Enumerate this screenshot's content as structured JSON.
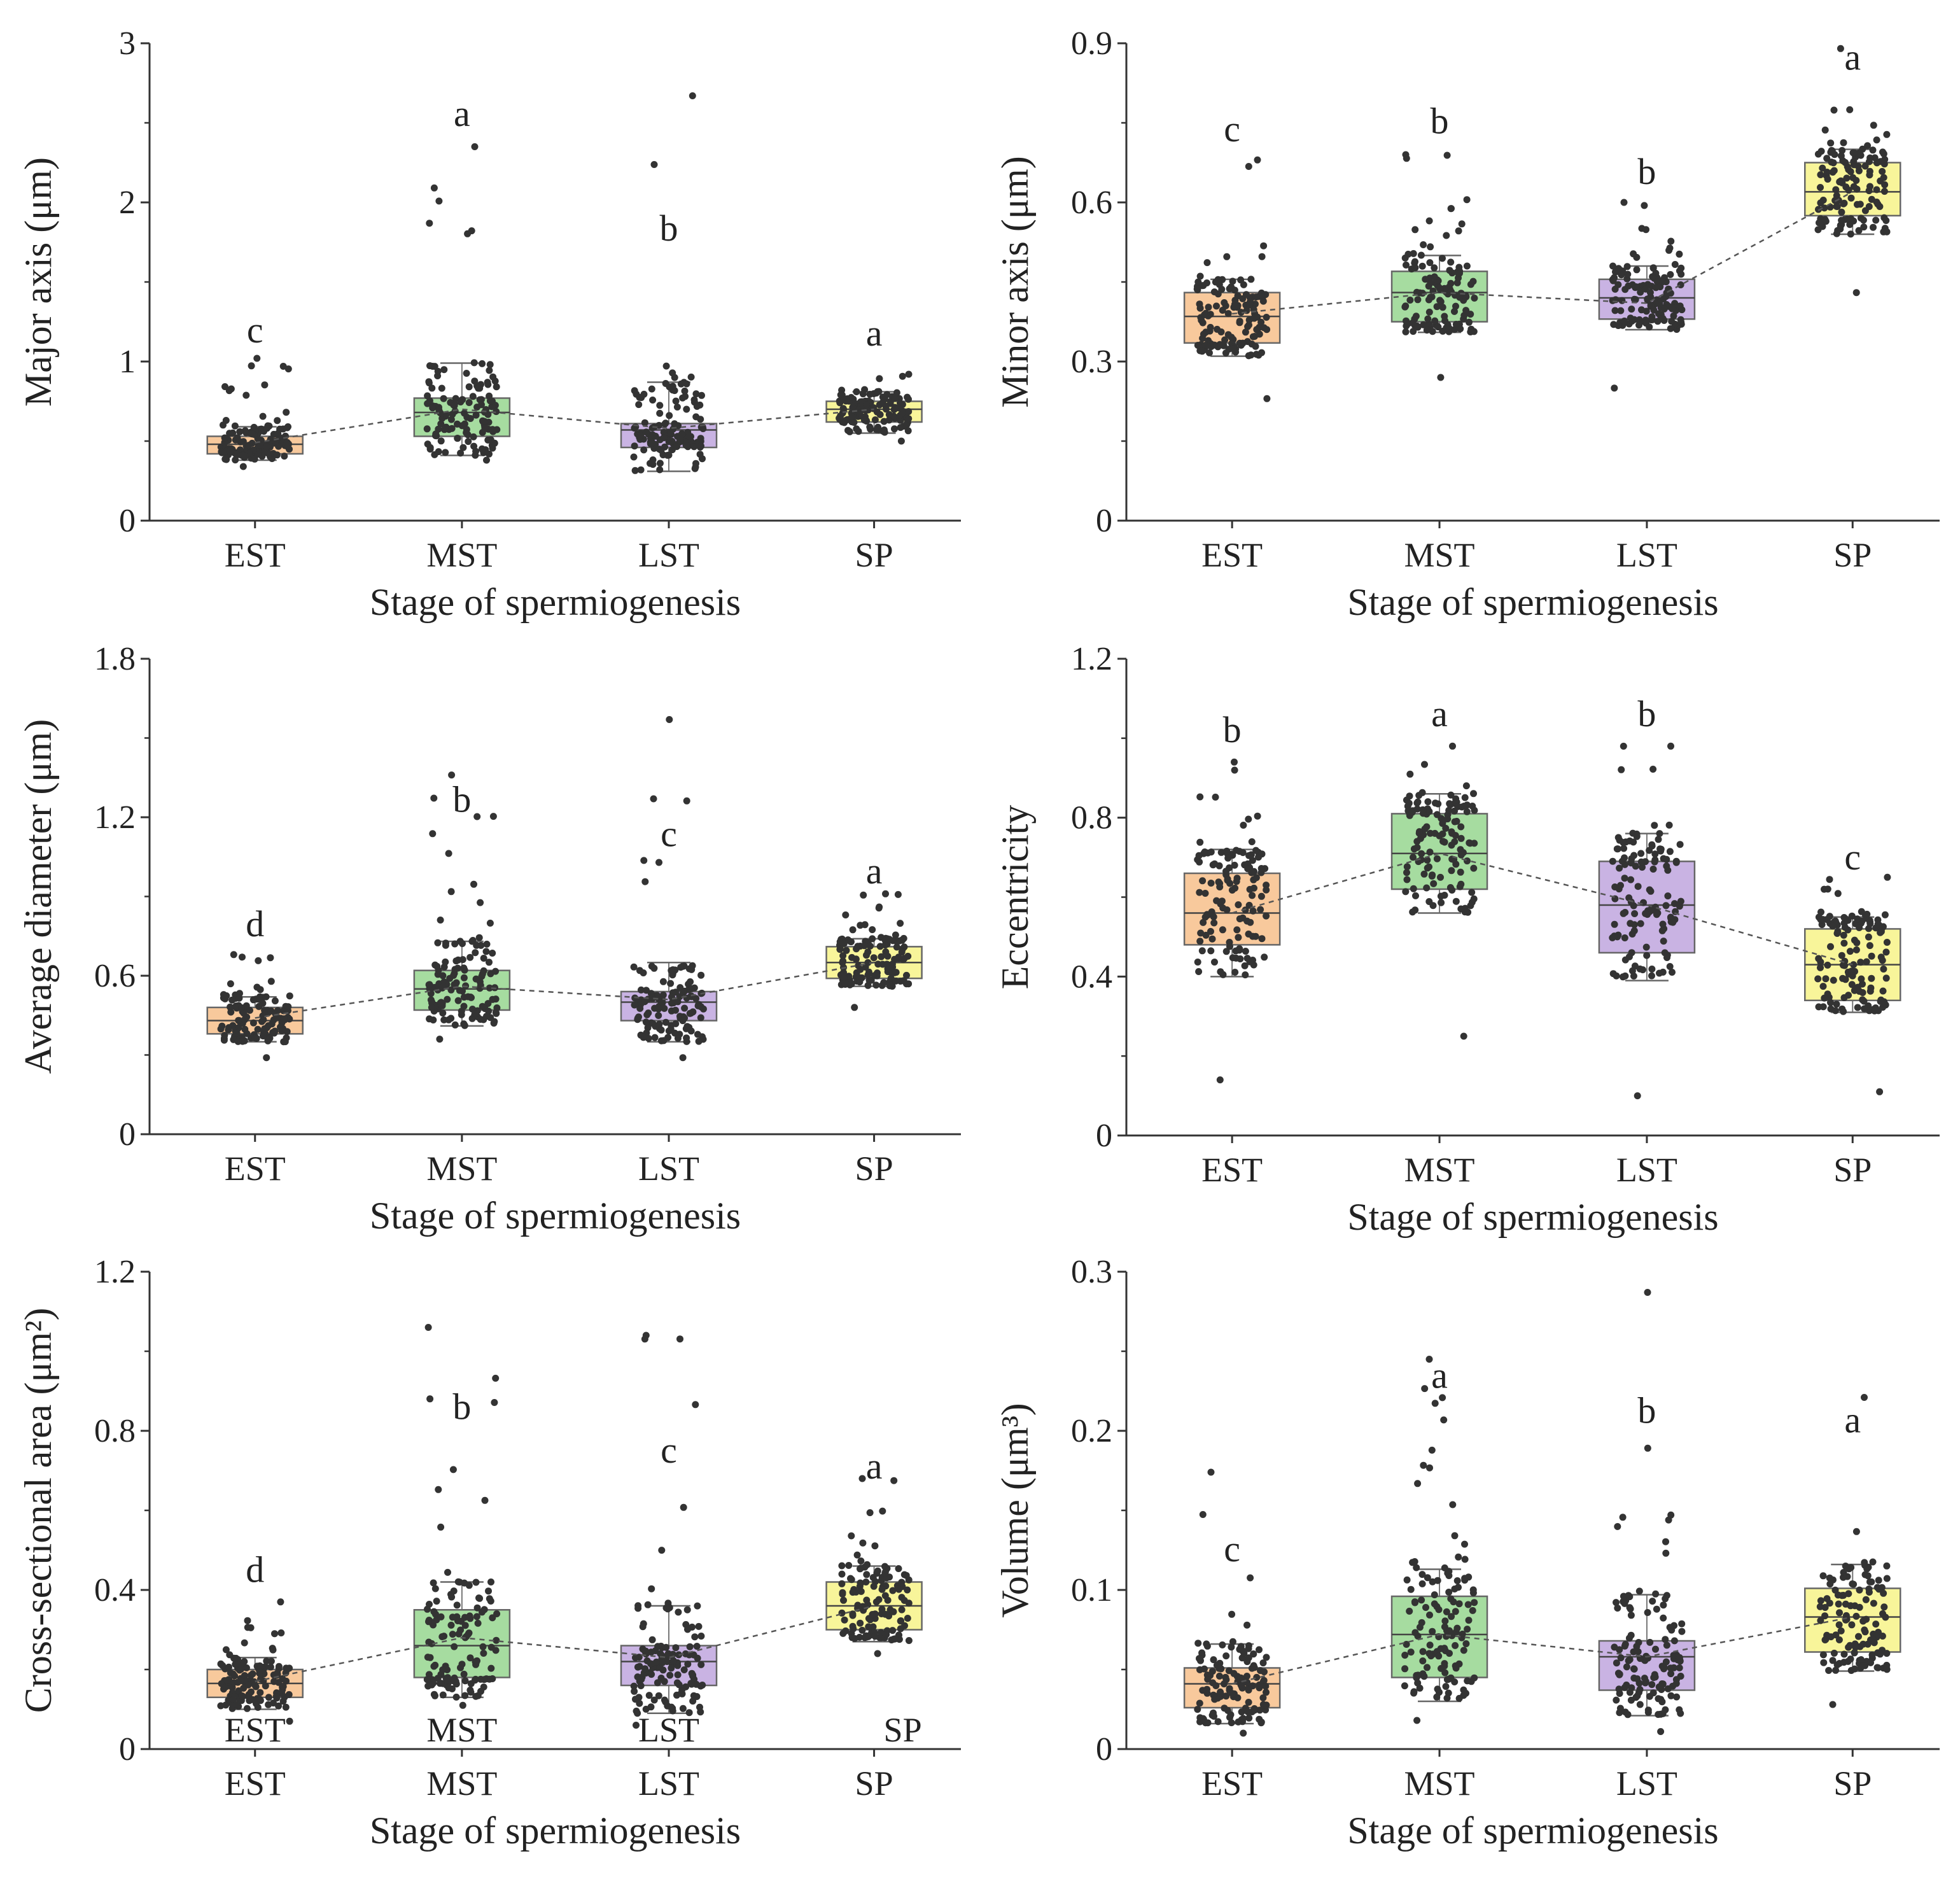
{
  "figure": {
    "colors": {
      "EST": "#f8c99c",
      "MST": "#a6dca0",
      "LST": "#c9b3e3",
      "SP": "#f8f59a",
      "points": "#333333",
      "mean_line": "#555555"
    }
  },
  "chart_data": [
    {
      "type": "box",
      "title": "",
      "xlabel": "Stage of spermiogenesis",
      "ylabel": "Major axis (μm)",
      "categories": [
        "EST",
        "MST",
        "LST",
        "SP"
      ],
      "ylim": [
        0,
        3
      ],
      "yticks": [
        0,
        1,
        2,
        3
      ],
      "boxes": [
        {
          "q1": 0.42,
          "median": 0.48,
          "q3": 0.53,
          "lo": 0.38,
          "hi": 0.59,
          "mean": 0.49,
          "min": 0.34,
          "max": 1.02
        },
        {
          "q1": 0.53,
          "median": 0.68,
          "q3": 0.77,
          "lo": 0.41,
          "hi": 0.99,
          "mean": 0.7,
          "min": 0.38,
          "max": 2.35
        },
        {
          "q1": 0.46,
          "median": 0.57,
          "q3": 0.61,
          "lo": 0.31,
          "hi": 0.87,
          "mean": 0.58,
          "min": 0.32,
          "max": 2.67
        },
        {
          "q1": 0.62,
          "median": 0.7,
          "q3": 0.75,
          "lo": 0.55,
          "hi": 0.81,
          "mean": 0.7,
          "min": 0.5,
          "max": 0.92
        }
      ],
      "letters": [
        "c",
        "a",
        "b",
        "a"
      ],
      "letter_y": [
        1.12,
        2.48,
        1.76,
        1.1
      ]
    },
    {
      "type": "box",
      "title": "",
      "xlabel": "Stage of spermiogenesis",
      "ylabel": "Minor axis (μm)",
      "categories": [
        "EST",
        "MST",
        "LST",
        "SP"
      ],
      "ylim": [
        0,
        0.9
      ],
      "yticks": [
        0,
        0.3,
        0.6,
        0.9
      ],
      "boxes": [
        {
          "q1": 0.335,
          "median": 0.385,
          "q3": 0.43,
          "lo": 0.31,
          "hi": 0.455,
          "mean": 0.39,
          "min": 0.23,
          "max": 0.68
        },
        {
          "q1": 0.375,
          "median": 0.43,
          "q3": 0.47,
          "lo": 0.355,
          "hi": 0.5,
          "mean": 0.43,
          "min": 0.27,
          "max": 0.69
        },
        {
          "q1": 0.38,
          "median": 0.42,
          "q3": 0.455,
          "lo": 0.36,
          "hi": 0.48,
          "mean": 0.41,
          "min": 0.25,
          "max": 0.6
        },
        {
          "q1": 0.575,
          "median": 0.62,
          "q3": 0.675,
          "lo": 0.54,
          "hi": 0.7,
          "mean": 0.62,
          "min": 0.43,
          "max": 0.89
        }
      ],
      "letters": [
        "c",
        "b",
        "b",
        "a"
      ],
      "letter_y": [
        0.715,
        0.73,
        0.635,
        0.85
      ]
    },
    {
      "type": "box",
      "title": "",
      "xlabel": "Stage of spermiogenesis",
      "ylabel": "Average diameter (μm)",
      "categories": [
        "EST",
        "MST",
        "LST",
        "SP"
      ],
      "ylim": [
        0,
        1.8
      ],
      "yticks": [
        0,
        0.6,
        1.2,
        1.8
      ],
      "boxes": [
        {
          "q1": 0.38,
          "median": 0.43,
          "q3": 0.48,
          "lo": 0.35,
          "hi": 0.52,
          "mean": 0.44,
          "min": 0.29,
          "max": 0.68
        },
        {
          "q1": 0.47,
          "median": 0.55,
          "q3": 0.62,
          "lo": 0.41,
          "hi": 0.73,
          "mean": 0.56,
          "min": 0.36,
          "max": 1.36
        },
        {
          "q1": 0.43,
          "median": 0.5,
          "q3": 0.54,
          "lo": 0.35,
          "hi": 0.65,
          "mean": 0.51,
          "min": 0.29,
          "max": 1.57
        },
        {
          "q1": 0.59,
          "median": 0.65,
          "q3": 0.71,
          "lo": 0.56,
          "hi": 0.74,
          "mean": 0.65,
          "min": 0.48,
          "max": 0.91
        }
      ],
      "letters": [
        "d",
        "b",
        "c",
        "a"
      ],
      "letter_y": [
        0.75,
        1.22,
        1.09,
        0.95
      ]
    },
    {
      "type": "box",
      "title": "",
      "xlabel": "Stage of spermiogenesis",
      "ylabel": "Eccentricity",
      "categories": [
        "EST",
        "MST",
        "LST",
        "SP"
      ],
      "ylim": [
        0,
        1.2
      ],
      "yticks": [
        0,
        0.4,
        0.8,
        1.2
      ],
      "boxes": [
        {
          "q1": 0.48,
          "median": 0.56,
          "q3": 0.66,
          "lo": 0.4,
          "hi": 0.72,
          "mean": 0.56,
          "min": 0.14,
          "max": 0.94
        },
        {
          "q1": 0.62,
          "median": 0.71,
          "q3": 0.81,
          "lo": 0.56,
          "hi": 0.86,
          "mean": 0.71,
          "min": 0.25,
          "max": 0.98
        },
        {
          "q1": 0.46,
          "median": 0.58,
          "q3": 0.69,
          "lo": 0.39,
          "hi": 0.76,
          "mean": 0.58,
          "min": 0.1,
          "max": 0.98
        },
        {
          "q1": 0.34,
          "median": 0.43,
          "q3": 0.52,
          "lo": 0.31,
          "hi": 0.55,
          "mean": 0.43,
          "min": 0.11,
          "max": 0.65
        }
      ],
      "letters": [
        "b",
        "a",
        "b",
        "c"
      ],
      "letter_y": [
        0.99,
        1.03,
        1.03,
        0.67
      ]
    },
    {
      "type": "box",
      "title": "",
      "xlabel": "Stage of spermiogenesis",
      "ylabel": "Cross-sectional area (μm²)",
      "categories": [
        "EST",
        "MST",
        "LST",
        "SP"
      ],
      "ylim": [
        0,
        1.2
      ],
      "yticks": [
        0,
        0.4,
        0.8,
        1.2
      ],
      "boxes": [
        {
          "q1": 0.13,
          "median": 0.165,
          "q3": 0.2,
          "lo": 0.1,
          "hi": 0.23,
          "mean": 0.17,
          "min": 0.07,
          "max": 0.37
        },
        {
          "q1": 0.18,
          "median": 0.26,
          "q3": 0.35,
          "lo": 0.13,
          "hi": 0.42,
          "mean": 0.28,
          "min": 0.11,
          "max": 1.06
        },
        {
          "q1": 0.16,
          "median": 0.22,
          "q3": 0.26,
          "lo": 0.09,
          "hi": 0.36,
          "mean": 0.23,
          "min": 0.06,
          "max": 1.04
        },
        {
          "q1": 0.3,
          "median": 0.36,
          "q3": 0.42,
          "lo": 0.27,
          "hi": 0.46,
          "mean": 0.36,
          "min": 0.24,
          "max": 0.68
        }
      ],
      "letters": [
        "d",
        "b",
        "c",
        "a"
      ],
      "letter_y": [
        0.42,
        0.83,
        0.72,
        0.68
      ],
      "stray_labels": [
        "EST",
        "MST",
        "LST",
        "SP"
      ]
    },
    {
      "type": "box",
      "title": "",
      "xlabel": "Stage of spermiogenesis",
      "ylabel": "Volume (μm³)",
      "categories": [
        "EST",
        "MST",
        "LST",
        "SP"
      ],
      "ylim": [
        0,
        0.3
      ],
      "yticks": [
        0,
        0.1,
        0.2,
        0.3
      ],
      "boxes": [
        {
          "q1": 0.026,
          "median": 0.041,
          "q3": 0.051,
          "lo": 0.016,
          "hi": 0.066,
          "mean": 0.041,
          "min": 0.01,
          "max": 0.174
        },
        {
          "q1": 0.045,
          "median": 0.072,
          "q3": 0.096,
          "lo": 0.03,
          "hi": 0.113,
          "mean": 0.072,
          "min": 0.018,
          "max": 0.245
        },
        {
          "q1": 0.037,
          "median": 0.058,
          "q3": 0.068,
          "lo": 0.021,
          "hi": 0.097,
          "mean": 0.058,
          "min": 0.011,
          "max": 0.287
        },
        {
          "q1": 0.061,
          "median": 0.083,
          "q3": 0.101,
          "lo": 0.049,
          "hi": 0.116,
          "mean": 0.083,
          "min": 0.028,
          "max": 0.221
        }
      ],
      "letters": [
        "c",
        "a",
        "b",
        "a"
      ],
      "letter_y": [
        0.118,
        0.227,
        0.205,
        0.199
      ]
    }
  ]
}
